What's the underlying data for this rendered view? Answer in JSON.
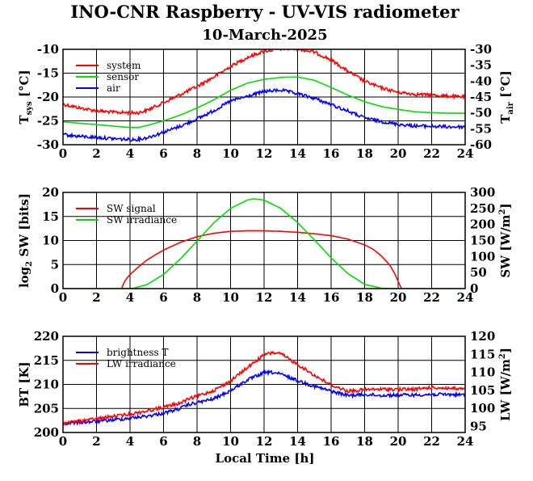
{
  "title": "INO-CNR Raspberry - UV-VIS radiometer",
  "subtitle": "10-March-2025",
  "x_label": "Local Time [h]",
  "chart_data": [
    {
      "type": "line",
      "x_ticks": [
        0,
        2,
        4,
        6,
        8,
        10,
        12,
        14,
        16,
        18,
        20,
        22,
        24
      ],
      "xlim": [
        0,
        24
      ],
      "ylim_left": [
        -30,
        -10
      ],
      "y_ticks_left": [
        -30,
        -25,
        -20,
        -15,
        -10
      ],
      "ylim_right": [
        -60,
        -30
      ],
      "y_ticks_right": [
        -60,
        -55,
        -50,
        -45,
        -40,
        -35,
        -30
      ],
      "ylabel_left": {
        "main": "T",
        "sub": "sys",
        "unit": " [°C]"
      },
      "ylabel_right": {
        "main": "T",
        "sub": "air",
        "unit": " [°C]"
      },
      "grid": true,
      "legend_position": "top-left",
      "series": [
        {
          "name": "system",
          "color": "#ff0000",
          "axis": "left",
          "noisy": true,
          "x": [
            0,
            1,
            2,
            3,
            4,
            4.5,
            5,
            6,
            7,
            8,
            9,
            10,
            11,
            12,
            13,
            14,
            15,
            16,
            17,
            18,
            19,
            20,
            21,
            22,
            23,
            24
          ],
          "y": [
            -21.5,
            -22.3,
            -22.9,
            -23.2,
            -23.3,
            -23.3,
            -22.8,
            -21.2,
            -19.5,
            -17.8,
            -15.8,
            -13.6,
            -11.7,
            -10.4,
            -9.9,
            -9.9,
            -10.6,
            -12.2,
            -14.6,
            -16.7,
            -18.1,
            -19.0,
            -19.4,
            -19.6,
            -19.8,
            -20.0
          ]
        },
        {
          "name": "sensor",
          "color": "#00dd00",
          "axis": "left",
          "noisy": false,
          "x": [
            0,
            1,
            2,
            3,
            4,
            4.5,
            5,
            6,
            7,
            8,
            9,
            10,
            11,
            12,
            13,
            14,
            15,
            16,
            17,
            18,
            19,
            20,
            21,
            22,
            23,
            24
          ],
          "y": [
            -25.2,
            -25.5,
            -25.8,
            -26.1,
            -26.4,
            -26.4,
            -26.0,
            -25.0,
            -23.8,
            -22.3,
            -20.6,
            -18.6,
            -17.1,
            -16.3,
            -15.9,
            -15.8,
            -16.5,
            -18.0,
            -19.6,
            -21.0,
            -22.0,
            -22.6,
            -23.1,
            -23.3,
            -23.4,
            -23.4
          ]
        },
        {
          "name": "air",
          "color": "#0000ff",
          "axis": "right",
          "noisy": true,
          "x": [
            0,
            1,
            2,
            3,
            4,
            4.5,
            5,
            6,
            7,
            8,
            9,
            10,
            11,
            12,
            13,
            14,
            15,
            16,
            17,
            18,
            19,
            20,
            21,
            22,
            23,
            24
          ],
          "y": [
            -56.8,
            -57.4,
            -57.7,
            -58.1,
            -58.4,
            -58.3,
            -57.8,
            -56.1,
            -54.2,
            -51.9,
            -49.3,
            -46.3,
            -44.8,
            -43.3,
            -42.8,
            -44.0,
            -45.4,
            -47.4,
            -49.4,
            -51.6,
            -52.7,
            -53.6,
            -54.1,
            -54.2,
            -54.4,
            -54.4
          ]
        }
      ]
    },
    {
      "type": "line",
      "x_ticks": [
        0,
        2,
        4,
        6,
        8,
        10,
        12,
        14,
        16,
        18,
        20,
        22,
        24
      ],
      "xlim": [
        0,
        24
      ],
      "ylim_left": [
        0,
        20
      ],
      "y_ticks_left": [
        0,
        5,
        10,
        15,
        20
      ],
      "ylim_right": [
        0,
        300
      ],
      "y_ticks_right": [
        0,
        50,
        100,
        150,
        200,
        250,
        300
      ],
      "ylabel_left": {
        "main": "log",
        "sub": "2",
        "unit": " SW [bits]"
      },
      "ylabel_right": {
        "main": "SW [W/m",
        "sup": "2",
        "unit": "]"
      },
      "grid": true,
      "legend_position": "top-left",
      "series": [
        {
          "name": "SW signal",
          "color": "#ff0000",
          "axis": "left",
          "noisy": false,
          "x": [
            3.5,
            3.6,
            3.7,
            3.85,
            4,
            4.5,
            5,
            5.5,
            6,
            7,
            8,
            9,
            10,
            11,
            12,
            13,
            14,
            15,
            16,
            17,
            18,
            18.5,
            19,
            19.5,
            19.8,
            20,
            20.2
          ],
          "y": [
            0,
            0.9,
            1.6,
            2.3,
            2.9,
            4.5,
            5.9,
            7.0,
            8.0,
            9.6,
            10.8,
            11.5,
            11.9,
            12.0,
            12.0,
            11.9,
            11.7,
            11.4,
            11.0,
            10.3,
            9.1,
            8.2,
            6.8,
            4.9,
            3.1,
            1.5,
            0
          ]
        },
        {
          "name": "SW irradiance",
          "color": "#00dd00",
          "axis": "right",
          "noisy": false,
          "x": [
            0,
            3.5,
            4.2,
            5,
            6,
            7,
            8,
            9,
            10,
            11,
            11.4,
            12,
            13,
            14,
            15,
            16,
            17,
            18,
            19,
            20,
            24
          ],
          "y": [
            0,
            0,
            1,
            12,
            44,
            92,
            148,
            205,
            250,
            276,
            280,
            276,
            250,
            206,
            152,
            96,
            47,
            13,
            1,
            0,
            0
          ]
        }
      ]
    },
    {
      "type": "line",
      "x_ticks": [
        0,
        2,
        4,
        6,
        8,
        10,
        12,
        14,
        16,
        18,
        20,
        22,
        24
      ],
      "xlim": [
        0,
        24
      ],
      "ylim_left": [
        200,
        220
      ],
      "y_ticks_left": [
        200,
        205,
        210,
        215,
        220
      ],
      "ylim_right": [
        93.33,
        120
      ],
      "y_ticks_right": [
        95,
        100,
        105,
        110,
        115,
        120
      ],
      "ylabel_left": {
        "main": "BT [K]"
      },
      "ylabel_right": {
        "main": "LW [W/m",
        "sup": "2",
        "unit": "]"
      },
      "grid": true,
      "legend_position": "top-left",
      "series": [
        {
          "name": "brightness T",
          "color": "#0000ff",
          "axis": "left",
          "noisy": true,
          "x": [
            0,
            1,
            2,
            3,
            4,
            5,
            6,
            7,
            7.5,
            8,
            9,
            10,
            11,
            12,
            12.5,
            13,
            14,
            15,
            16,
            17,
            18,
            19,
            20,
            21,
            22,
            23,
            24
          ],
          "y": [
            201.8,
            202.1,
            202.3,
            202.6,
            203.0,
            203.4,
            204.0,
            205.0,
            205.8,
            206.2,
            207.0,
            208.7,
            210.9,
            212.4,
            212.5,
            212.1,
            210.8,
            209.6,
            208.6,
            207.7,
            207.9,
            207.7,
            207.8,
            207.8,
            207.9,
            207.9,
            207.8
          ]
        },
        {
          "name": "LW irradiance",
          "color": "#ff0000",
          "axis": "right",
          "noisy": true,
          "x": [
            0,
            1,
            2,
            3,
            4,
            5,
            6,
            7,
            7.5,
            8,
            9,
            10,
            11,
            12,
            12.5,
            13,
            14,
            15,
            16,
            17,
            18,
            19,
            20,
            21,
            22,
            23,
            24
          ],
          "y": [
            95.9,
            96.5,
            97.1,
            97.8,
            98.4,
            99.3,
            100.3,
            101.5,
            102.6,
            103.4,
            105.0,
            107.6,
            111.3,
            114.8,
            115.5,
            115.1,
            112.2,
            109.2,
            106.5,
            104.8,
            105.2,
            105.3,
            105.3,
            105.3,
            105.8,
            105.6,
            105.3
          ]
        }
      ]
    }
  ]
}
